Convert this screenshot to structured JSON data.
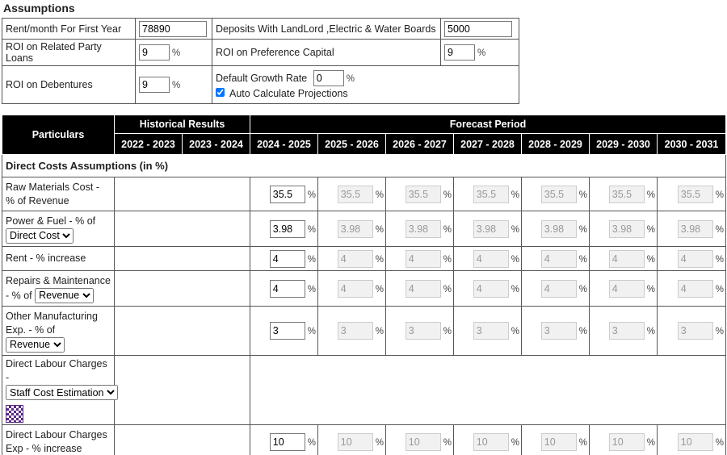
{
  "percent": "%",
  "assumptions": {
    "title": "Assumptions",
    "rent": {
      "label": "Rent/month For First Year",
      "value": "78890"
    },
    "deposits": {
      "label": "Deposits With LandLord ,Electric & Water Boards",
      "value": "5000"
    },
    "roi_related": {
      "label": "ROI on Related Party Loans",
      "value": "9"
    },
    "roi_preference": {
      "label": "ROI on Preference Capital",
      "value": "9"
    },
    "roi_debentures": {
      "label": "ROI on Debentures",
      "value": "9"
    },
    "growth": {
      "label": "Default Growth Rate",
      "value": "0"
    },
    "auto_calc": {
      "label": "Auto Calculate Projections",
      "checked": true
    }
  },
  "table": {
    "header": {
      "particulars": "Particulars",
      "historical": "Historical Results",
      "forecast": "Forecast Period",
      "years": [
        "2022 - 2023",
        "2023 - 2024",
        "2024 - 2025",
        "2025 - 2026",
        "2026 - 2027",
        "2027 - 2028",
        "2028 - 2029",
        "2029 - 2030",
        "2030 - 2031"
      ]
    },
    "section": "Direct Costs Assumptions (in %)",
    "rows": [
      {
        "label": "Raw Materials Cost - % of Revenue",
        "values": [
          "35.5",
          "35.5",
          "35.5",
          "35.5",
          "35.5",
          "35.5",
          "35.5"
        ]
      },
      {
        "label": "Power & Fuel - % of",
        "select": "Direct Cost",
        "values": [
          "3.98",
          "3.98",
          "3.98",
          "3.98",
          "3.98",
          "3.98",
          "3.98"
        ]
      },
      {
        "label": "Rent - % increase",
        "values": [
          "4",
          "4",
          "4",
          "4",
          "4",
          "4",
          "4"
        ]
      },
      {
        "label": "Repairs & Maintenance - % of",
        "select": "Revenue",
        "values": [
          "4",
          "4",
          "4",
          "4",
          "4",
          "4",
          "4"
        ]
      },
      {
        "label": "Other Manufacturing Exp. - % of",
        "select": "Revenue",
        "values": [
          "3",
          "3",
          "3",
          "3",
          "3",
          "3",
          "3"
        ]
      },
      {
        "label": "Direct Labour Charges -",
        "select": "Staff Cost Estimation",
        "icon": true
      },
      {
        "label": "Direct Labour Charges Exp - % increase",
        "values": [
          "10",
          "10",
          "10",
          "10",
          "10",
          "10",
          "10"
        ]
      }
    ]
  }
}
